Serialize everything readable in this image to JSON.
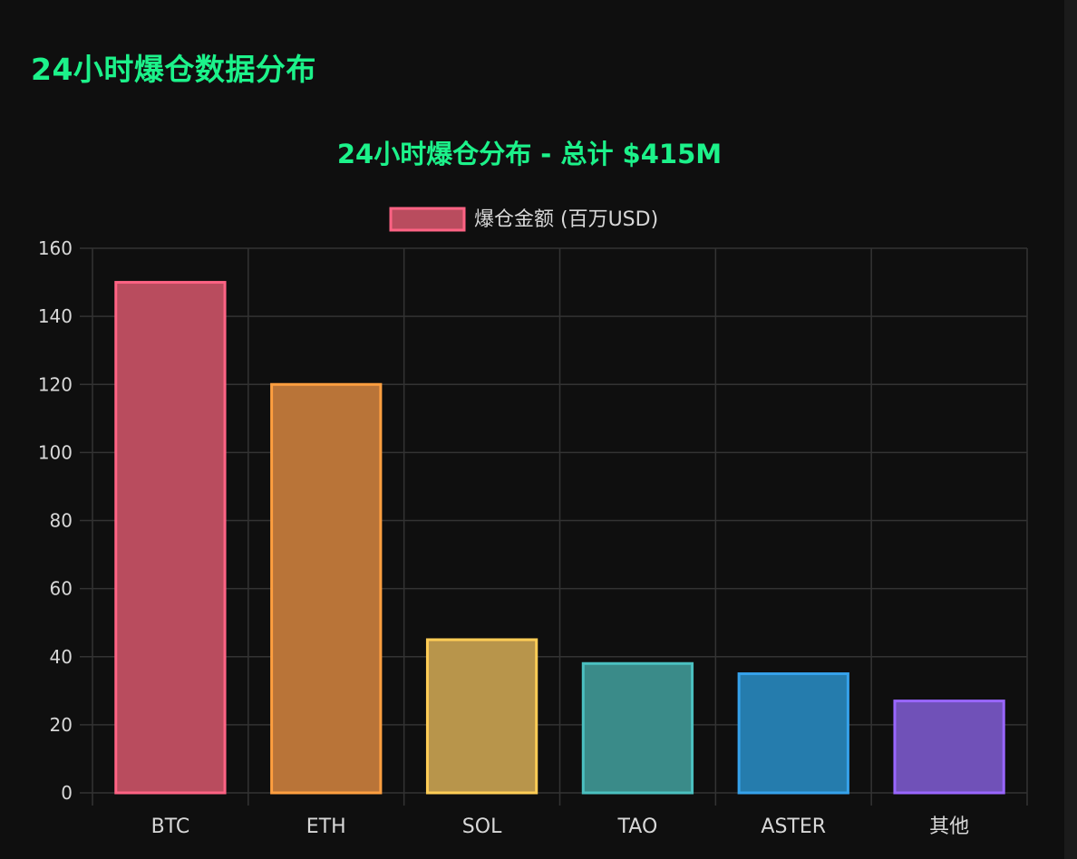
{
  "page": {
    "title": "24小时爆仓数据分布"
  },
  "chart_data": {
    "type": "bar",
    "title": "24小时爆仓分布 - 总计 $415M",
    "xlabel": "",
    "ylabel": "",
    "categories": [
      "BTC",
      "ETH",
      "SOL",
      "TAO",
      "ASTER",
      "其他"
    ],
    "series": [
      {
        "name": "爆仓金额 (百万USD)",
        "values": [
          150,
          120,
          45,
          38,
          35,
          27
        ]
      }
    ],
    "ylim": [
      0,
      160
    ],
    "yticks": [
      0,
      20,
      40,
      60,
      80,
      100,
      120,
      140,
      160
    ],
    "grid": true,
    "legend_position": "top-center",
    "colors": {
      "title": "#1cf28a",
      "text": "#d8d8d8",
      "grid": "#333333",
      "bar_fills": [
        "#b94c5e",
        "#b97438",
        "#b8954b",
        "#3a8b89",
        "#257cad",
        "#7051b8"
      ],
      "bar_borders": [
        "#ff6384",
        "#ff9f40",
        "#ffcd56",
        "#4bc0c0",
        "#36a2eb",
        "#9966ff"
      ]
    }
  }
}
